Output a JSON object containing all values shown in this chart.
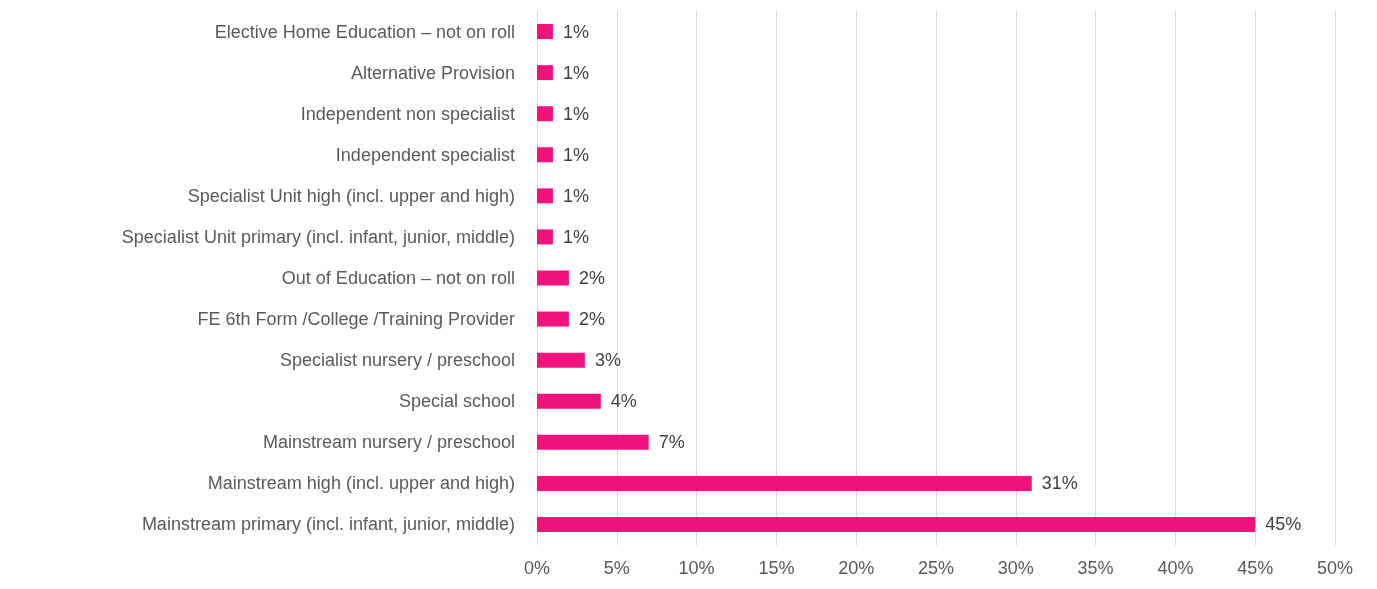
{
  "chart_data": {
    "type": "bar",
    "orientation": "horizontal",
    "categories": [
      "Elective Home Education – not on roll",
      "Alternative Provision",
      "Independent non specialist",
      "Independent specialist",
      "Specialist Unit high (incl. upper and high)",
      "Specialist Unit primary (incl. infant, junior, middle)",
      "Out of Education – not on roll",
      "FE 6th Form /College /Training Provider",
      "Specialist nursery / preschool",
      "Special school",
      "Mainstream nursery / preschool",
      "Mainstream high (incl. upper and high)",
      "Mainstream primary (incl. infant, junior, middle)"
    ],
    "values": [
      1,
      1,
      1,
      1,
      1,
      1,
      2,
      2,
      3,
      4,
      7,
      31,
      45
    ],
    "value_labels": [
      "1%",
      "1%",
      "1%",
      "1%",
      "1%",
      "1%",
      "2%",
      "2%",
      "3%",
      "4%",
      "7%",
      "31%",
      "45%"
    ],
    "color": "#f0137d",
    "xlim": [
      0,
      50
    ],
    "xticks": [
      {
        "value": 0,
        "label": "0%"
      },
      {
        "value": 5,
        "label": "5%"
      },
      {
        "value": 10,
        "label": "10%"
      },
      {
        "value": 15,
        "label": "15%"
      },
      {
        "value": 20,
        "label": "20%"
      },
      {
        "value": 25,
        "label": "25%"
      },
      {
        "value": 30,
        "label": "30%"
      },
      {
        "value": 35,
        "label": "35%"
      },
      {
        "value": 40,
        "label": "40%"
      },
      {
        "value": 45,
        "label": "45%"
      },
      {
        "value": 50,
        "label": "50%"
      }
    ],
    "grid": "x"
  }
}
